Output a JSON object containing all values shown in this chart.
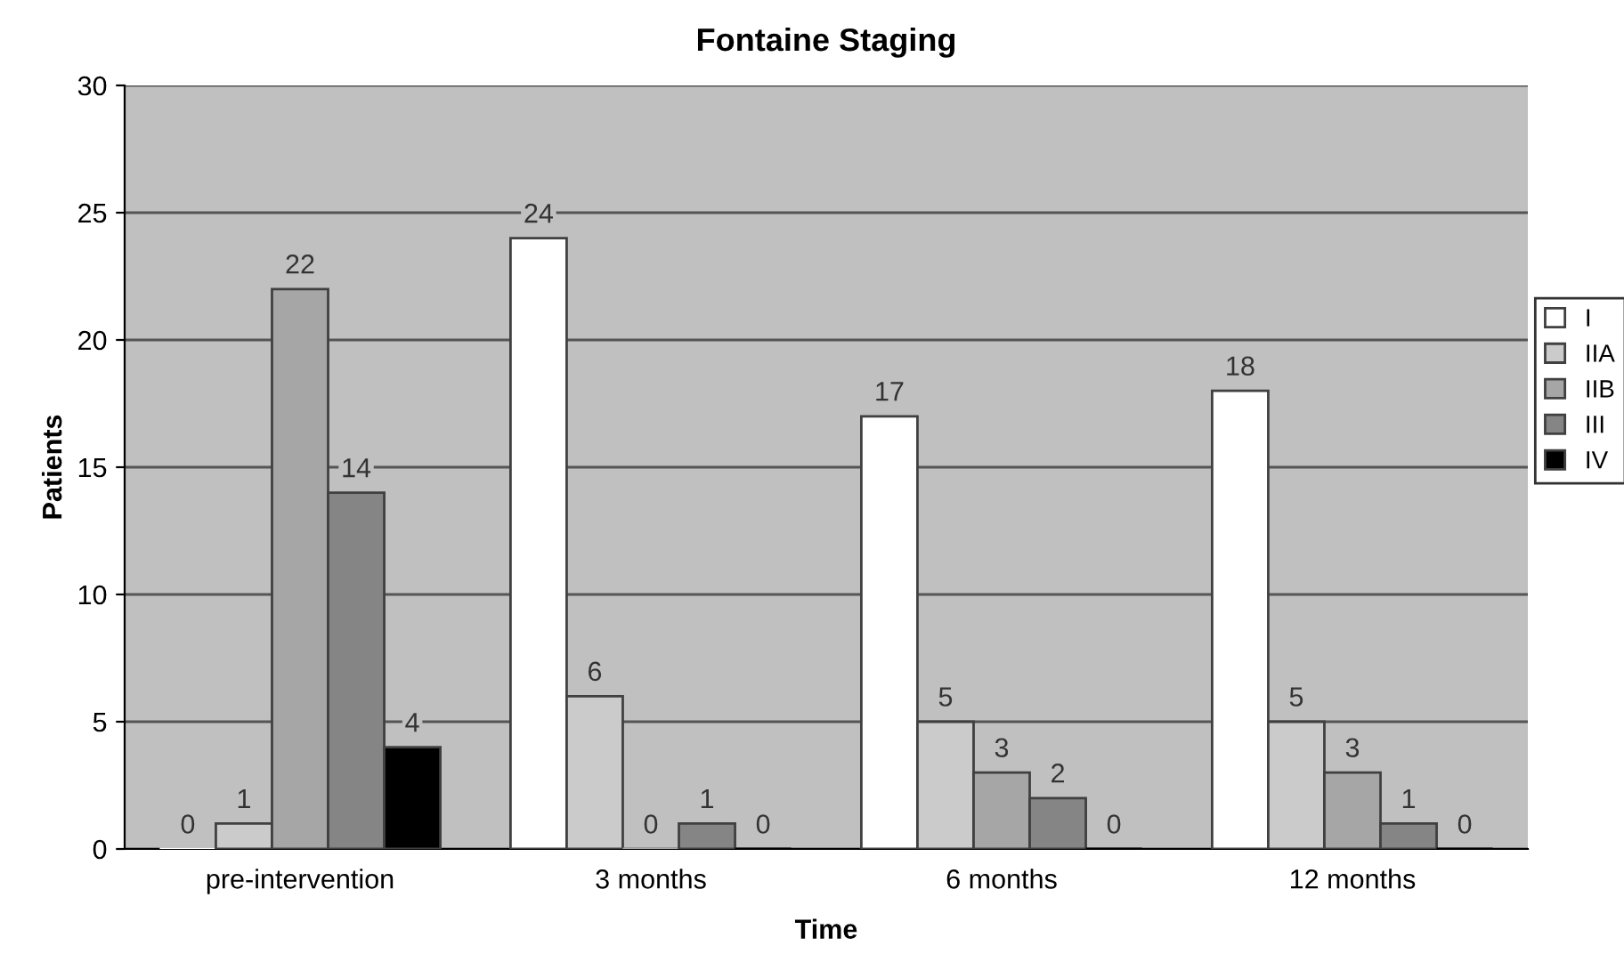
{
  "chart_data": {
    "type": "bar",
    "title": "Fontaine Staging",
    "xlabel": "Time",
    "ylabel": "Patients",
    "categories": [
      "pre-intervention",
      "3 months",
      "6 months",
      "12 months"
    ],
    "series": [
      {
        "name": "I",
        "color": "#ffffff",
        "values": [
          0,
          24,
          17,
          18
        ]
      },
      {
        "name": "IIA",
        "color": "#cbcbcb",
        "values": [
          1,
          6,
          5,
          5
        ]
      },
      {
        "name": "IIB",
        "color": "#a6a6a6",
        "values": [
          22,
          0,
          3,
          3
        ]
      },
      {
        "name": "III",
        "color": "#858585",
        "values": [
          14,
          1,
          2,
          1
        ]
      },
      {
        "name": "IV",
        "color": "#000000",
        "values": [
          4,
          0,
          0,
          0
        ]
      }
    ],
    "ylim": [
      0,
      30
    ],
    "yticks": [
      0,
      5,
      10,
      15,
      20,
      25,
      30
    ],
    "grid": "y",
    "legend": "right",
    "data_labels": true
  }
}
